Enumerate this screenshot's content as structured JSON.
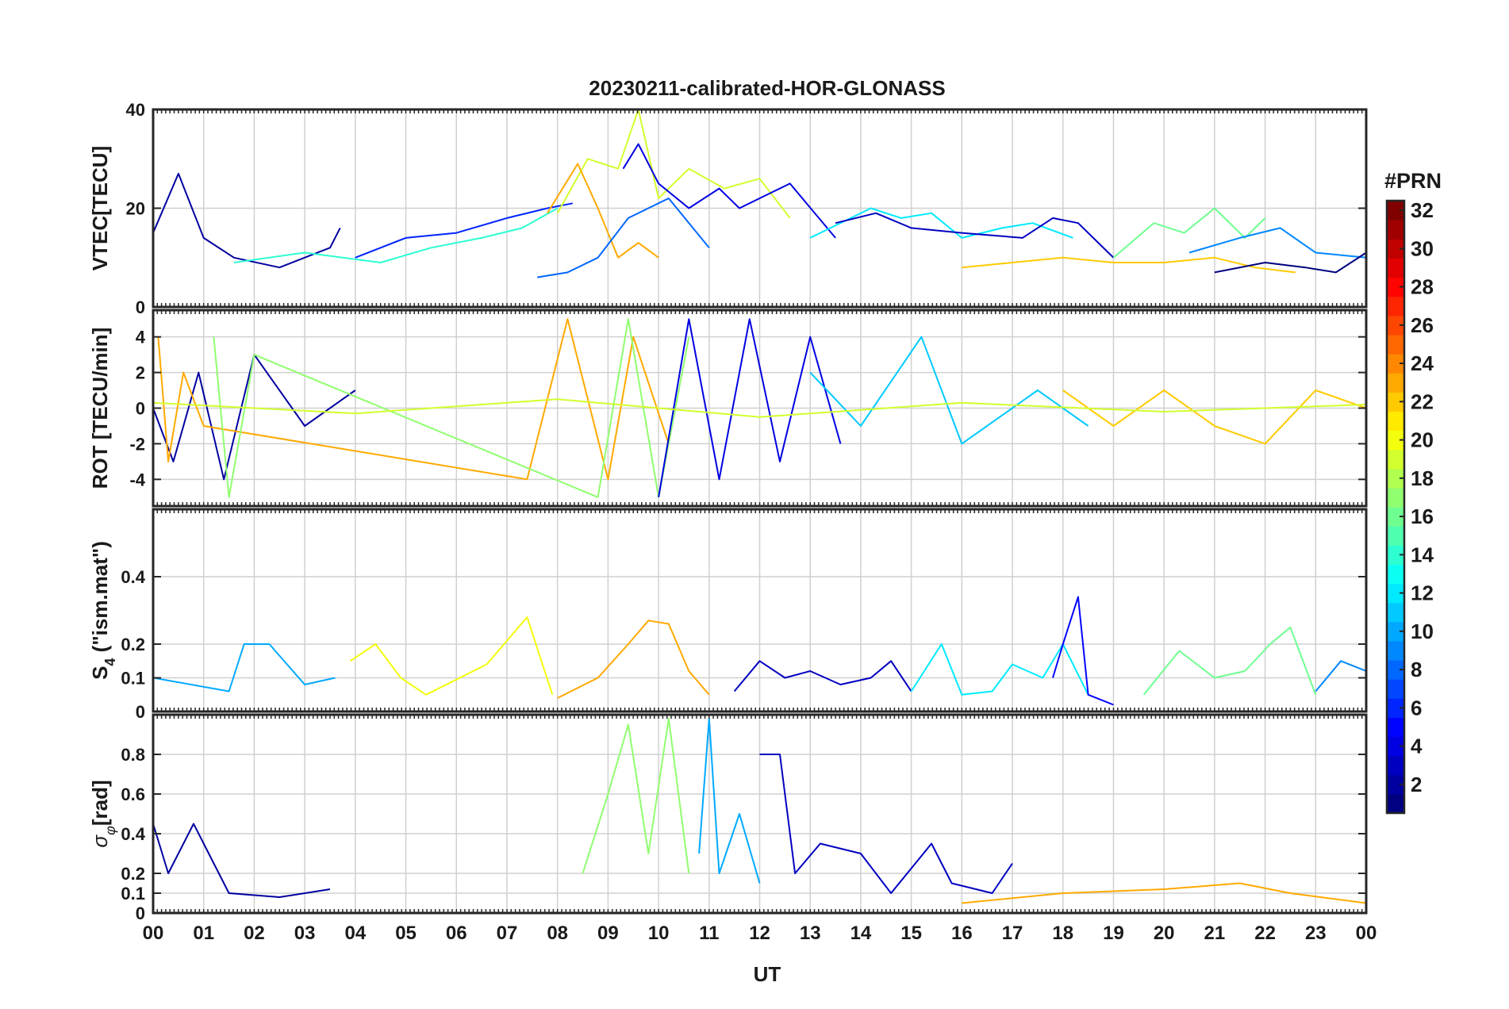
{
  "chart_data": {
    "title": "20230211-calibrated-HOR-GLONASS",
    "xlabel": "UT",
    "x_tick_labels": [
      "00",
      "01",
      "02",
      "03",
      "04",
      "05",
      "06",
      "07",
      "08",
      "09",
      "10",
      "11",
      "12",
      "13",
      "14",
      "15",
      "16",
      "17",
      "18",
      "19",
      "20",
      "21",
      "22",
      "23",
      "00"
    ],
    "xlim": [
      0,
      24
    ],
    "grid": true,
    "colorbar": {
      "label": "#PRN",
      "range": [
        1,
        32
      ],
      "colormap": "jet",
      "ticks": [
        2,
        4,
        6,
        8,
        10,
        12,
        14,
        16,
        18,
        20,
        22,
        24,
        26,
        28,
        30,
        32
      ],
      "tick_labels": [
        "2",
        "4",
        "6",
        "8",
        "10",
        "12",
        "14",
        "16",
        "18",
        "20",
        "22",
        "24",
        "26",
        "28",
        "30",
        "32"
      ]
    },
    "panels": [
      {
        "id": "vtec",
        "type": "line",
        "ylabel": "VTEC[TECU]",
        "ylim": [
          0,
          40
        ],
        "y_ticks": [
          0,
          20,
          40
        ],
        "y_tick_labels": [
          "0",
          "20",
          "40"
        ],
        "series": [
          {
            "prn": 2,
            "x": [
              0.0,
              0.5,
              1.0,
              1.6,
              2.5,
              3.5,
              3.7
            ],
            "y": [
              15,
              27,
              14,
              10,
              8,
              12,
              16
            ]
          },
          {
            "prn": 14,
            "x": [
              1.6,
              3.0,
              4.5,
              5.5,
              6.5,
              7.3,
              8.0
            ],
            "y": [
              9,
              11,
              9,
              12,
              14,
              16,
              20
            ]
          },
          {
            "prn": 6,
            "x": [
              4.0,
              5.0,
              6.0,
              7.0,
              7.8,
              8.3
            ],
            "y": [
              10,
              14,
              15,
              18,
              20,
              21
            ]
          },
          {
            "prn": 19,
            "x": [
              8.0,
              8.6,
              9.2,
              9.6,
              10.0,
              10.6,
              11.3,
              12.0,
              12.6
            ],
            "y": [
              19,
              30,
              28,
              40,
              22,
              28,
              24,
              26,
              18
            ]
          },
          {
            "prn": 23,
            "x": [
              7.8,
              8.4,
              8.8,
              9.2,
              9.6,
              10.0
            ],
            "y": [
              19,
              29,
              20,
              10,
              13,
              10
            ]
          },
          {
            "prn": 4,
            "x": [
              9.3,
              9.6,
              10.0,
              10.6,
              11.2,
              11.6,
              12.0,
              12.6,
              13.5
            ],
            "y": [
              28,
              33,
              25,
              20,
              24,
              20,
              22,
              25,
              14
            ]
          },
          {
            "prn": 8,
            "x": [
              7.6,
              8.2,
              8.8,
              9.4,
              10.2,
              11.0
            ],
            "y": [
              6,
              7,
              10,
              18,
              22,
              12
            ]
          },
          {
            "prn": 12,
            "x": [
              13.0,
              14.2,
              14.8,
              15.4,
              16.0,
              16.8,
              17.4,
              18.2
            ],
            "y": [
              14,
              20,
              18,
              19,
              14,
              16,
              17,
              14
            ]
          },
          {
            "prn": 3,
            "x": [
              13.5,
              14.3,
              15.0,
              16.0,
              17.2,
              17.8,
              18.3,
              19.0
            ],
            "y": [
              17,
              19,
              16,
              15,
              14,
              18,
              17,
              10
            ]
          },
          {
            "prn": 22,
            "x": [
              16.0,
              17.0,
              18.0,
              19.0,
              20.0,
              21.0,
              21.8,
              22.6
            ],
            "y": [
              8,
              9,
              10,
              9,
              9,
              10,
              8,
              7
            ]
          },
          {
            "prn": 16,
            "x": [
              19.0,
              19.8,
              20.4,
              21.0,
              21.6,
              22.0
            ],
            "y": [
              10,
              17,
              15,
              20,
              14,
              18
            ]
          },
          {
            "prn": 9,
            "x": [
              20.5,
              21.5,
              22.3,
              23.0,
              24.0
            ],
            "y": [
              11,
              14,
              16,
              11,
              10
            ]
          },
          {
            "prn": 1,
            "x": [
              21.0,
              22.0,
              22.8,
              23.4,
              24.0
            ],
            "y": [
              7,
              9,
              8,
              7,
              11
            ]
          }
        ]
      },
      {
        "id": "rot",
        "type": "line",
        "ylabel": "ROT [TECU/min]",
        "ylim": [
          -5.5,
          5.5
        ],
        "y_ticks": [
          -4,
          -2,
          0,
          2,
          4
        ],
        "y_tick_labels": [
          "-4",
          "-2",
          "0",
          "2",
          "4"
        ],
        "series": [
          {
            "prn": 2,
            "x": [
              0.0,
              0.4,
              0.9,
              1.4,
              2.0,
              3.0,
              4.0
            ],
            "y": [
              0,
              -3,
              2,
              -4,
              3,
              -1,
              1
            ]
          },
          {
            "prn": 23,
            "x": [
              0.1,
              0.3,
              0.6,
              1.0,
              7.4,
              8.2,
              9.0,
              9.5,
              10.2
            ],
            "y": [
              4,
              -3,
              2,
              -1,
              -4,
              5,
              -4,
              4,
              -2
            ]
          },
          {
            "prn": 17,
            "x": [
              1.2,
              1.5,
              2.0,
              8.8,
              9.4,
              10.0,
              10.6
            ],
            "y": [
              4,
              -5,
              3,
              -5,
              5,
              -5,
              4
            ]
          },
          {
            "prn": 4,
            "x": [
              10.0,
              10.6,
              11.2,
              11.8,
              12.4,
              13.0,
              13.6
            ],
            "y": [
              -5,
              5,
              -4,
              5,
              -3,
              4,
              -2
            ]
          },
          {
            "prn": 11,
            "x": [
              13.0,
              14.0,
              15.2,
              16.0,
              17.5,
              18.5
            ],
            "y": [
              2,
              -1,
              4,
              -2,
              1,
              -1
            ]
          },
          {
            "prn": 22,
            "x": [
              18.0,
              19.0,
              20.0,
              21.0,
              22.0,
              23.0,
              24.0
            ],
            "y": [
              1,
              -1,
              1,
              -1,
              -2,
              1,
              0
            ]
          },
          {
            "prn": 19,
            "x": [
              0.0,
              4.0,
              8.0,
              12.0,
              16.0,
              20.0,
              24.0
            ],
            "y": [
              0.3,
              -0.3,
              0.5,
              -0.5,
              0.3,
              -0.2,
              0.2
            ]
          }
        ]
      },
      {
        "id": "s4",
        "type": "line",
        "ylabel": "S4 (\"ism.mat\")",
        "ylabel_main": "S",
        "ylabel_sub": "4",
        "ylabel_rest": " (\"ism.mat\")",
        "ylim": [
          0,
          0.6
        ],
        "y_ticks": [
          0,
          0.1,
          0.2,
          0.4
        ],
        "y_tick_labels": [
          "0",
          "0.1",
          "0.2",
          "0.4"
        ],
        "series": [
          {
            "prn": 10,
            "x": [
              0.0,
              1.5,
              1.8,
              2.3,
              3.0,
              3.6
            ],
            "y": [
              0.1,
              0.06,
              0.2,
              0.2,
              0.08,
              0.1
            ]
          },
          {
            "prn": 20,
            "x": [
              3.9,
              4.4,
              4.9,
              5.4,
              6.6,
              7.4,
              7.9
            ],
            "y": [
              0.15,
              0.2,
              0.1,
              0.05,
              0.14,
              0.28,
              0.05
            ]
          },
          {
            "prn": 23,
            "x": [
              8.0,
              8.8,
              9.4,
              9.8,
              10.2,
              10.6,
              11.0
            ],
            "y": [
              0.04,
              0.1,
              0.2,
              0.27,
              0.26,
              0.12,
              0.05
            ]
          },
          {
            "prn": 3,
            "x": [
              11.5,
              12.0,
              12.5,
              13.0,
              13.6,
              14.2,
              14.6,
              15.0
            ],
            "y": [
              0.06,
              0.15,
              0.1,
              0.12,
              0.08,
              0.1,
              0.15,
              0.06
            ]
          },
          {
            "prn": 12,
            "x": [
              15.0,
              15.6,
              16.0,
              16.6,
              17.0,
              17.6,
              18.0,
              18.5
            ],
            "y": [
              0.06,
              0.2,
              0.05,
              0.06,
              0.14,
              0.1,
              0.2,
              0.05
            ]
          },
          {
            "prn": 5,
            "x": [
              17.8,
              18.0,
              18.3,
              18.5,
              19.0
            ],
            "y": [
              0.1,
              0.2,
              0.34,
              0.05,
              0.02
            ]
          },
          {
            "prn": 16,
            "x": [
              19.6,
              20.3,
              21.0,
              21.6,
              22.1,
              22.5,
              23.0
            ],
            "y": [
              0.05,
              0.18,
              0.1,
              0.12,
              0.2,
              0.25,
              0.05
            ]
          },
          {
            "prn": 9,
            "x": [
              23.0,
              23.5,
              24.0
            ],
            "y": [
              0.06,
              0.15,
              0.12
            ]
          }
        ]
      },
      {
        "id": "sigma_phi",
        "type": "line",
        "ylabel": "σφ[rad]",
        "ylabel_main": "σ",
        "ylabel_sub": "φ",
        "ylabel_rest": "[rad]",
        "ylim": [
          0,
          1.0
        ],
        "y_ticks": [
          0,
          0.1,
          0.2,
          0.4,
          0.6,
          0.8
        ],
        "y_tick_labels": [
          "0",
          "0.1",
          "0.2",
          "0.4",
          "0.6",
          "0.8"
        ],
        "series": [
          {
            "prn": 2,
            "x": [
              0.0,
              0.3,
              0.8,
              1.5,
              2.5,
              3.5
            ],
            "y": [
              0.45,
              0.2,
              0.45,
              0.1,
              0.08,
              0.12
            ]
          },
          {
            "prn": 17,
            "x": [
              8.5,
              9.0,
              9.4,
              9.8,
              10.2,
              10.6
            ],
            "y": [
              0.2,
              0.6,
              0.95,
              0.3,
              0.98,
              0.2
            ]
          },
          {
            "prn": 10,
            "x": [
              10.8,
              11.0,
              11.2,
              11.6,
              12.0
            ],
            "y": [
              0.3,
              0.98,
              0.2,
              0.5,
              0.15
            ]
          },
          {
            "prn": 3,
            "x": [
              12.0,
              12.4,
              12.7,
              13.2,
              14.0,
              14.6,
              15.4,
              15.8,
              16.6,
              17.0
            ],
            "y": [
              0.8,
              0.8,
              0.2,
              0.35,
              0.3,
              0.1,
              0.35,
              0.15,
              0.1,
              0.25
            ]
          },
          {
            "prn": 23,
            "x": [
              16.0,
              18.0,
              20.0,
              21.5,
              22.5,
              24.0
            ],
            "y": [
              0.05,
              0.1,
              0.12,
              0.15,
              0.1,
              0.05
            ]
          }
        ]
      }
    ]
  }
}
